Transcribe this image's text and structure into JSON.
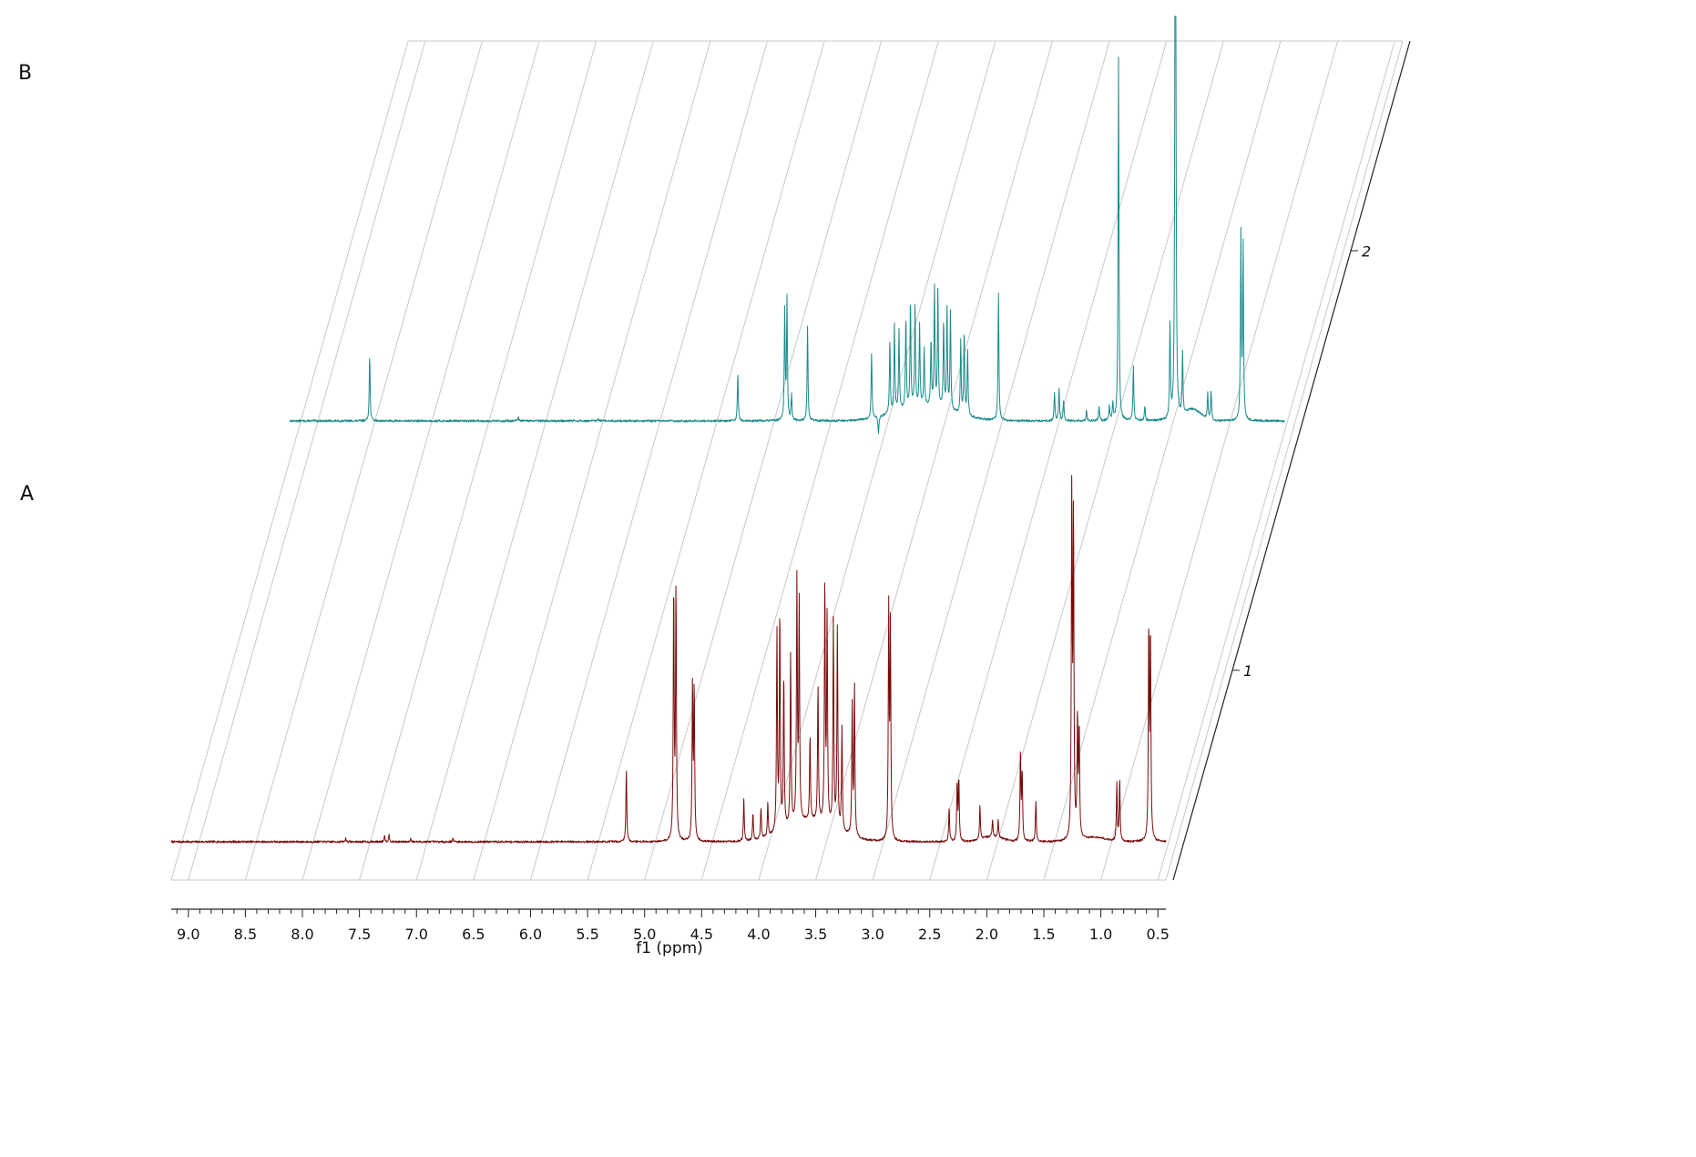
{
  "panel_labels": {
    "top": "B",
    "bottom": "A"
  },
  "chart_data": {
    "type": "line",
    "subtype": "stacked-nmr-spectra",
    "title": "",
    "xlabel": "f1 (ppm)",
    "ylabel": "",
    "x_reversed": true,
    "xlim": [
      9.15,
      0.43
    ],
    "x_ticks": [
      9.0,
      8.5,
      8.0,
      7.5,
      7.0,
      6.5,
      6.0,
      5.5,
      5.0,
      4.5,
      4.0,
      3.5,
      3.0,
      2.5,
      2.0,
      1.5,
      1.0,
      0.5
    ],
    "x_tick_labels": [
      "9.0",
      "8.5",
      "8.0",
      "7.5",
      "7.0",
      "6.5",
      "6.0",
      "5.5",
      "5.0",
      "4.5",
      "4.0",
      "3.5",
      "3.0",
      "2.5",
      "2.0",
      "1.5",
      "1.0",
      "0.5"
    ],
    "depth_axis_ticks": [
      "1",
      "2"
    ],
    "grid": true,
    "colors": {
      "A": "#7a0a0a",
      "B": "#1a8a8a",
      "grid": "#c8c8c8",
      "axis": "#222222"
    },
    "series": [
      {
        "name": "1",
        "panel": "A",
        "peaks": [
          {
            "ppm": 7.62,
            "height": 0.01
          },
          {
            "ppm": 7.28,
            "height": 0.02
          },
          {
            "ppm": 7.24,
            "height": 0.02
          },
          {
            "ppm": 7.05,
            "height": 0.01
          },
          {
            "ppm": 6.68,
            "height": 0.01
          },
          {
            "ppm": 5.16,
            "height": 0.21
          },
          {
            "ppm": 4.745,
            "height": 0.74
          },
          {
            "ppm": 4.725,
            "height": 0.74
          },
          {
            "ppm": 4.58,
            "height": 0.45
          },
          {
            "ppm": 4.565,
            "height": 0.44
          },
          {
            "ppm": 4.13,
            "height": 0.12
          },
          {
            "ppm": 4.05,
            "height": 0.08
          },
          {
            "ppm": 3.98,
            "height": 0.09
          },
          {
            "ppm": 3.92,
            "height": 0.1
          },
          {
            "ppm": 3.84,
            "height": 0.58
          },
          {
            "ppm": 3.815,
            "height": 0.64
          },
          {
            "ppm": 3.78,
            "height": 0.45
          },
          {
            "ppm": 3.72,
            "height": 0.5
          },
          {
            "ppm": 3.665,
            "height": 0.7
          },
          {
            "ppm": 3.645,
            "height": 0.63
          },
          {
            "ppm": 3.55,
            "height": 0.25
          },
          {
            "ppm": 3.48,
            "height": 0.4
          },
          {
            "ppm": 3.42,
            "height": 0.7
          },
          {
            "ppm": 3.4,
            "height": 0.6
          },
          {
            "ppm": 3.345,
            "height": 0.6
          },
          {
            "ppm": 3.31,
            "height": 0.59
          },
          {
            "ppm": 3.27,
            "height": 0.3
          },
          {
            "ppm": 3.18,
            "height": 0.38
          },
          {
            "ppm": 3.16,
            "height": 0.44
          },
          {
            "ppm": 2.86,
            "height": 0.66
          },
          {
            "ppm": 2.845,
            "height": 0.61
          },
          {
            "ppm": 2.33,
            "height": 0.1
          },
          {
            "ppm": 2.26,
            "height": 0.17
          },
          {
            "ppm": 2.245,
            "height": 0.18
          },
          {
            "ppm": 2.06,
            "height": 0.1
          },
          {
            "ppm": 1.95,
            "height": 0.05
          },
          {
            "ppm": 1.9,
            "height": 0.05
          },
          {
            "ppm": 1.705,
            "height": 0.26
          },
          {
            "ppm": 1.69,
            "height": 0.2
          },
          {
            "ppm": 1.57,
            "height": 0.12
          },
          {
            "ppm": 1.255,
            "height": 1.0
          },
          {
            "ppm": 1.24,
            "height": 0.93
          },
          {
            "ppm": 1.205,
            "height": 0.35
          },
          {
            "ppm": 1.19,
            "height": 0.32
          },
          {
            "ppm": 0.86,
            "height": 0.17
          },
          {
            "ppm": 0.835,
            "height": 0.18
          },
          {
            "ppm": 0.58,
            "height": 0.61
          },
          {
            "ppm": 0.565,
            "height": 0.6
          }
        ]
      },
      {
        "name": "2",
        "panel": "B",
        "peaks": [
          {
            "ppm": 7.35,
            "height": 0.18
          },
          {
            "ppm": 6.05,
            "height": 0.01
          },
          {
            "ppm": 5.35,
            "height": 0.005
          },
          {
            "ppm": 4.13,
            "height": 0.13
          },
          {
            "ppm": 3.72,
            "height": 0.3
          },
          {
            "ppm": 3.7,
            "height": 0.33
          },
          {
            "ppm": 3.66,
            "height": 0.07
          },
          {
            "ppm": 3.52,
            "height": 0.26
          },
          {
            "ppm": 2.96,
            "height": 0.18
          },
          {
            "ppm": 2.9,
            "height": -0.05
          },
          {
            "ppm": 2.8,
            "height": 0.2
          },
          {
            "ppm": 2.76,
            "height": 0.24
          },
          {
            "ppm": 2.72,
            "height": 0.22
          },
          {
            "ppm": 2.66,
            "height": 0.25
          },
          {
            "ppm": 2.62,
            "height": 0.29
          },
          {
            "ppm": 2.58,
            "height": 0.28
          },
          {
            "ppm": 2.54,
            "height": 0.22
          },
          {
            "ppm": 2.5,
            "height": 0.16
          },
          {
            "ppm": 2.44,
            "height": 0.18
          },
          {
            "ppm": 2.41,
            "height": 0.33
          },
          {
            "ppm": 2.38,
            "height": 0.32
          },
          {
            "ppm": 2.33,
            "height": 0.24
          },
          {
            "ppm": 2.3,
            "height": 0.28
          },
          {
            "ppm": 2.27,
            "height": 0.27
          },
          {
            "ppm": 2.18,
            "height": 0.2
          },
          {
            "ppm": 2.15,
            "height": 0.23
          },
          {
            "ppm": 2.12,
            "height": 0.18
          },
          {
            "ppm": 1.85,
            "height": 0.35
          },
          {
            "ppm": 1.36,
            "height": 0.08
          },
          {
            "ppm": 1.32,
            "height": 0.09
          },
          {
            "ppm": 1.28,
            "height": 0.06
          },
          {
            "ppm": 1.08,
            "height": 0.03
          },
          {
            "ppm": 0.97,
            "height": 0.04
          },
          {
            "ppm": 0.88,
            "height": 0.04
          },
          {
            "ppm": 0.85,
            "height": 0.05
          },
          {
            "ppm": 0.8,
            "height": 1.0
          },
          {
            "ppm": 0.67,
            "height": 0.15
          },
          {
            "ppm": 0.57,
            "height": 0.04
          },
          {
            "ppm": 0.35,
            "height": 0.26
          },
          {
            "ppm": 0.305,
            "height": 1.0
          },
          {
            "ppm": 0.3,
            "height": 1.0
          },
          {
            "ppm": 0.24,
            "height": 0.17
          },
          {
            "ppm": 0.02,
            "height": 0.07
          },
          {
            "ppm": -0.01,
            "height": 0.08
          },
          {
            "ppm": -0.27,
            "height": 0.51
          },
          {
            "ppm": -0.29,
            "height": 0.48
          }
        ]
      }
    ]
  }
}
